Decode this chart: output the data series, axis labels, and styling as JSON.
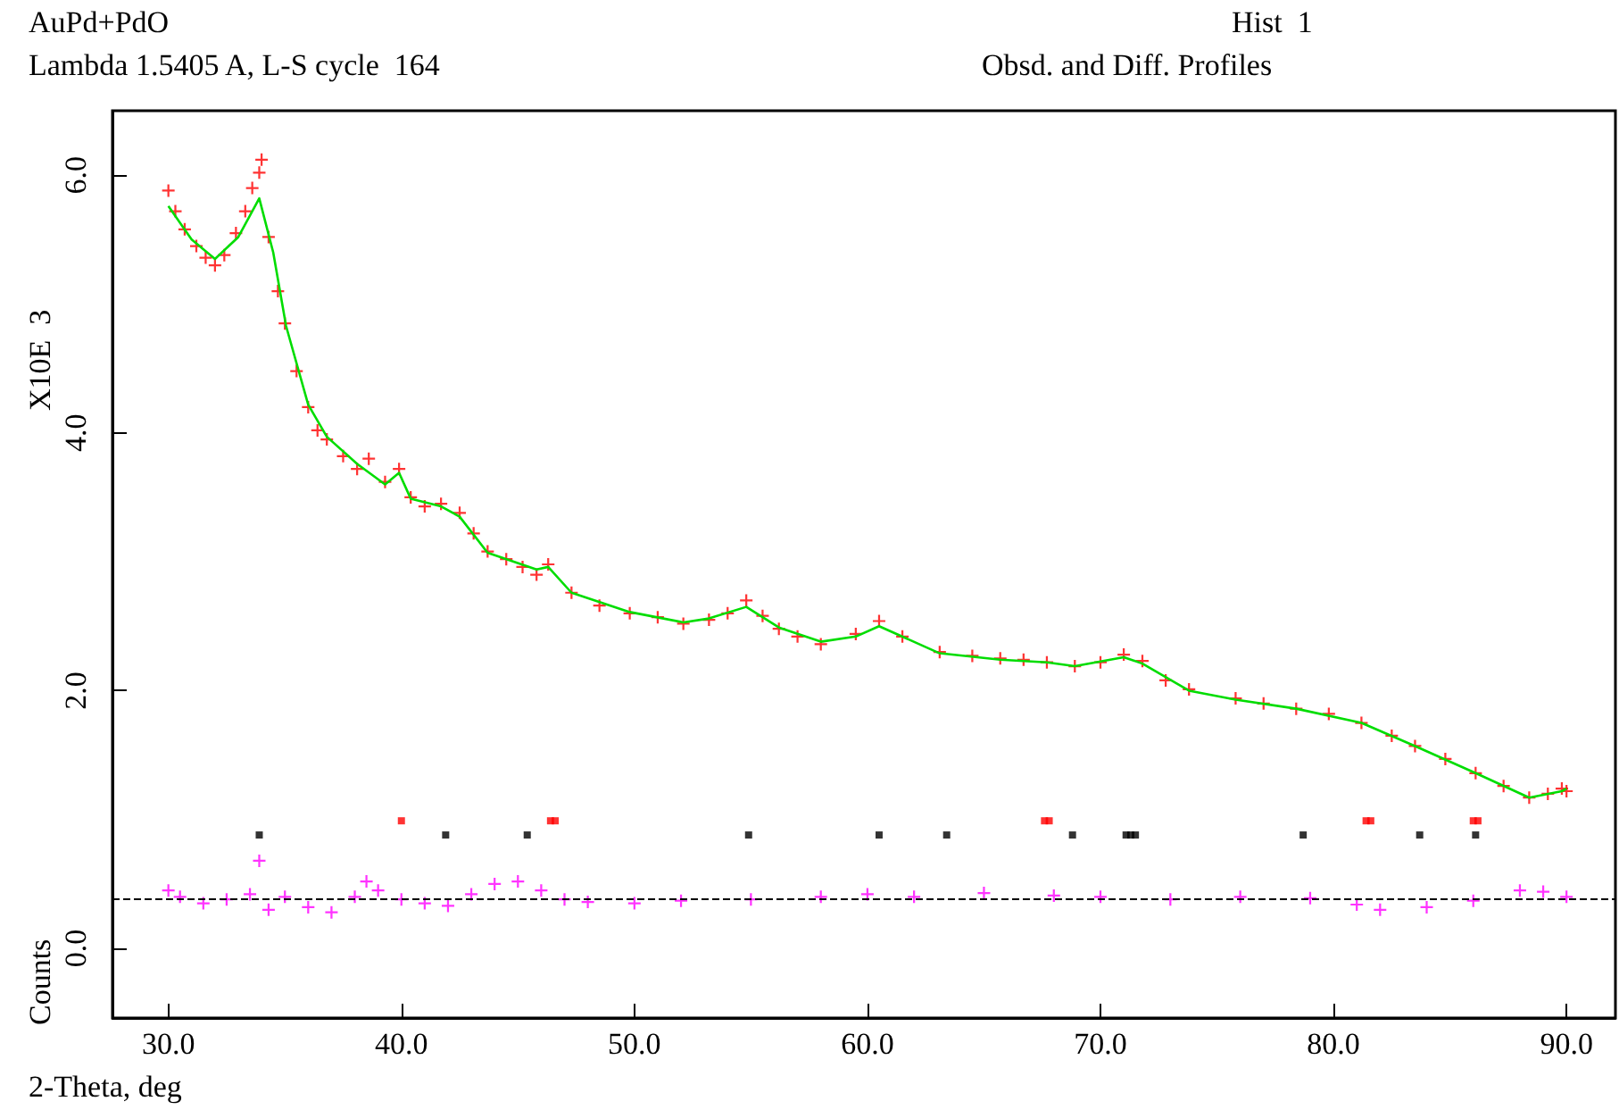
{
  "chart_data": {
    "type": "scatter",
    "title": "AuPd+PdO",
    "subtitle": "Lambda 1.5405 A, L-S cycle  164",
    "xlabel": "2-Theta, deg",
    "ylabel": "Counts",
    "annotations": [
      "Hist  1",
      "Obsd. and Diff. Profiles",
      "X10E  3"
    ],
    "xlim": [
      27.6,
      92.1
    ],
    "xticks": [
      {
        "value": 30,
        "label": "30.0"
      },
      {
        "value": 40,
        "label": "40.0"
      },
      {
        "value": 50,
        "label": "50.0"
      },
      {
        "value": 60,
        "label": "60.0"
      },
      {
        "value": 70,
        "label": "70.0"
      },
      {
        "value": 80,
        "label": "80.0"
      },
      {
        "value": 90,
        "label": "90.0"
      }
    ],
    "ylim": [
      -0.54,
      6.5
    ],
    "yticks": [
      {
        "value": 0,
        "label": "0.0"
      },
      {
        "value": 2,
        "label": "2.0"
      },
      {
        "value": 4,
        "label": "4.0"
      },
      {
        "value": 6,
        "label": "6.0"
      }
    ],
    "grid": false,
    "ref_lines": [
      {
        "axis": "y",
        "value": 0.39,
        "color": "#000000",
        "line_style": "dashed"
      }
    ],
    "series": [
      {
        "marker": "cross",
        "color": "#ff0000",
        "x": [
          30.0,
          30.3,
          30.7,
          31.2,
          31.6,
          32.0,
          32.4,
          32.9,
          33.3,
          33.6,
          33.9,
          34.0,
          34.3,
          34.7,
          35.0,
          35.5,
          36.0,
          36.4,
          36.8,
          37.5,
          38.1,
          38.6,
          39.3,
          39.9,
          40.4,
          41.0,
          41.7,
          42.5,
          43.1,
          43.7,
          44.5,
          45.2,
          45.8,
          46.3,
          47.3,
          48.5,
          49.8,
          51.0,
          52.1,
          53.2,
          54.0,
          54.8,
          55.5,
          56.2,
          57.0,
          58.0,
          59.5,
          60.5,
          61.5,
          63.1,
          64.5,
          65.7,
          66.7,
          67.7,
          68.9,
          70.0,
          71.0,
          71.8,
          72.8,
          73.8,
          75.8,
          77.0,
          78.4,
          79.8,
          81.2,
          82.5,
          83.5,
          84.8,
          86.1,
          87.3,
          88.4,
          89.2,
          89.8,
          90.0
        ],
        "values": [
          5.88,
          5.72,
          5.58,
          5.45,
          5.36,
          5.3,
          5.38,
          5.55,
          5.72,
          5.9,
          6.02,
          6.12,
          5.52,
          5.1,
          4.85,
          4.48,
          4.2,
          4.02,
          3.95,
          3.82,
          3.72,
          3.8,
          3.62,
          3.72,
          3.5,
          3.43,
          3.45,
          3.38,
          3.22,
          3.08,
          3.02,
          2.96,
          2.9,
          2.98,
          2.76,
          2.66,
          2.6,
          2.57,
          2.52,
          2.55,
          2.6,
          2.7,
          2.58,
          2.48,
          2.42,
          2.36,
          2.44,
          2.54,
          2.42,
          2.3,
          2.27,
          2.25,
          2.24,
          2.22,
          2.19,
          2.22,
          2.28,
          2.23,
          2.08,
          2.01,
          1.94,
          1.9,
          1.86,
          1.82,
          1.75,
          1.65,
          1.57,
          1.47,
          1.36,
          1.26,
          1.17,
          1.2,
          1.24,
          1.22
        ]
      },
      {
        "type": "line",
        "marker": "none",
        "line_style": "solid",
        "color": "#00dd00",
        "x": [
          30.0,
          31.0,
          32.0,
          33.0,
          33.9,
          34.5,
          35.05,
          36.0,
          36.8,
          38.1,
          39.3,
          39.9,
          40.4,
          41.7,
          42.5,
          43.7,
          45.8,
          46.3,
          47.3,
          49.8,
          52.1,
          53.2,
          54.8,
          56.2,
          58.0,
          59.5,
          60.5,
          63.1,
          65.7,
          67.7,
          68.9,
          71.0,
          71.8,
          73.8,
          75.8,
          78.4,
          81.2,
          83.5,
          86.1,
          88.4,
          89.8,
          90.0
        ],
        "values": [
          5.76,
          5.5,
          5.35,
          5.52,
          5.82,
          5.4,
          4.83,
          4.22,
          3.97,
          3.76,
          3.6,
          3.69,
          3.49,
          3.43,
          3.35,
          3.07,
          2.94,
          2.96,
          2.76,
          2.61,
          2.53,
          2.56,
          2.65,
          2.49,
          2.38,
          2.42,
          2.5,
          2.29,
          2.24,
          2.22,
          2.19,
          2.26,
          2.21,
          2.0,
          1.93,
          1.86,
          1.75,
          1.57,
          1.36,
          1.17,
          1.22,
          1.24
        ]
      },
      {
        "type": "scatter",
        "marker": "cross",
        "color": "#ff00ff",
        "x": [
          30.0,
          30.5,
          31.5,
          32.5,
          33.5,
          33.9,
          34.3,
          35.0,
          36.0,
          37.0,
          38.0,
          38.5,
          39.0,
          40.0,
          41.0,
          42.0,
          43.0,
          44.0,
          45.0,
          46.0,
          47.0,
          48.0,
          50.0,
          52.0,
          55.0,
          58.0,
          60.0,
          62.0,
          65.0,
          68.0,
          70.0,
          73.0,
          76.0,
          79.0,
          81.0,
          82.0,
          84.0,
          86.0,
          88.0,
          89.0,
          90.0
        ],
        "values": [
          0.45,
          0.4,
          0.35,
          0.38,
          0.42,
          0.68,
          0.3,
          0.4,
          0.32,
          0.28,
          0.4,
          0.52,
          0.45,
          0.38,
          0.35,
          0.33,
          0.42,
          0.5,
          0.52,
          0.45,
          0.38,
          0.36,
          0.35,
          0.37,
          0.38,
          0.4,
          0.42,
          0.4,
          0.43,
          0.41,
          0.4,
          0.38,
          0.4,
          0.39,
          0.34,
          0.3,
          0.32,
          0.37,
          0.45,
          0.44,
          0.4
        ]
      },
      {
        "type": "scatter",
        "marker": "square",
        "color": "#000000",
        "x": [
          33.9,
          41.9,
          45.4,
          54.9,
          60.5,
          63.4,
          68.8,
          71.1,
          71.3,
          71.5,
          78.7,
          83.7,
          86.1
        ],
        "values": [
          0.88,
          0.88,
          0.88,
          0.88,
          0.88,
          0.88,
          0.88,
          0.88,
          0.88,
          0.88,
          0.88,
          0.88,
          0.88
        ]
      },
      {
        "type": "scatter",
        "marker": "square",
        "color": "#ff0000",
        "x": [
          40.0,
          46.4,
          46.6,
          67.6,
          67.8,
          81.4,
          81.6,
          86.0,
          86.2
        ],
        "values": [
          0.99,
          0.99,
          0.99,
          0.99,
          0.99,
          0.99,
          0.99,
          0.99,
          0.99
        ]
      }
    ]
  }
}
